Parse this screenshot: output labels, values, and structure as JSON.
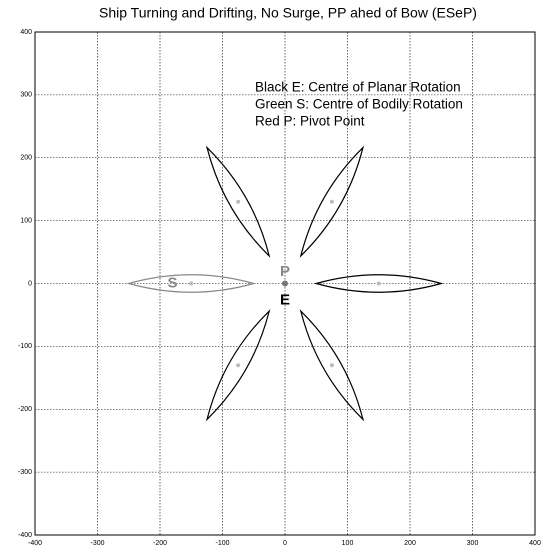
{
  "chart_data": {
    "type": "scatter",
    "title": "Ship Turning and Drifting, No Surge, PP ahed of Bow (ESeP)",
    "xlim": [
      -400,
      400
    ],
    "ylim": [
      -400,
      400
    ],
    "xticks": [
      -400,
      -300,
      -200,
      -100,
      0,
      100,
      200,
      300,
      400
    ],
    "yticks": [
      -400,
      -300,
      -200,
      -100,
      0,
      100,
      200,
      300,
      400
    ],
    "grid": true,
    "series": [
      {
        "color": "#bbbbbb",
        "x": [
          150,
          75,
          -75,
          -150,
          -75,
          75
        ],
        "y": [
          0,
          130,
          130,
          0,
          -130,
          -130
        ],
        "hull_colors": [
          "#000000",
          "#000000",
          "#000000",
          "#888888",
          "#000000",
          "#000000"
        ]
      },
      {
        "color": "#777777",
        "x": [
          0
        ],
        "y": [
          0
        ]
      }
    ],
    "annotations": [
      {
        "text": "P",
        "x": 0,
        "y": 18,
        "color": "#888888"
      },
      {
        "text": "E",
        "x": 0,
        "y": -27,
        "color": "#000000"
      },
      {
        "text": "S",
        "x": -180,
        "y": 0,
        "color": "#888888"
      }
    ],
    "legend_lines": [
      "Black E:  Centre of Planar Rotation",
      "Green S:  Centre of Bodily Rotation",
      "Red P:     Pivot Point"
    ]
  }
}
